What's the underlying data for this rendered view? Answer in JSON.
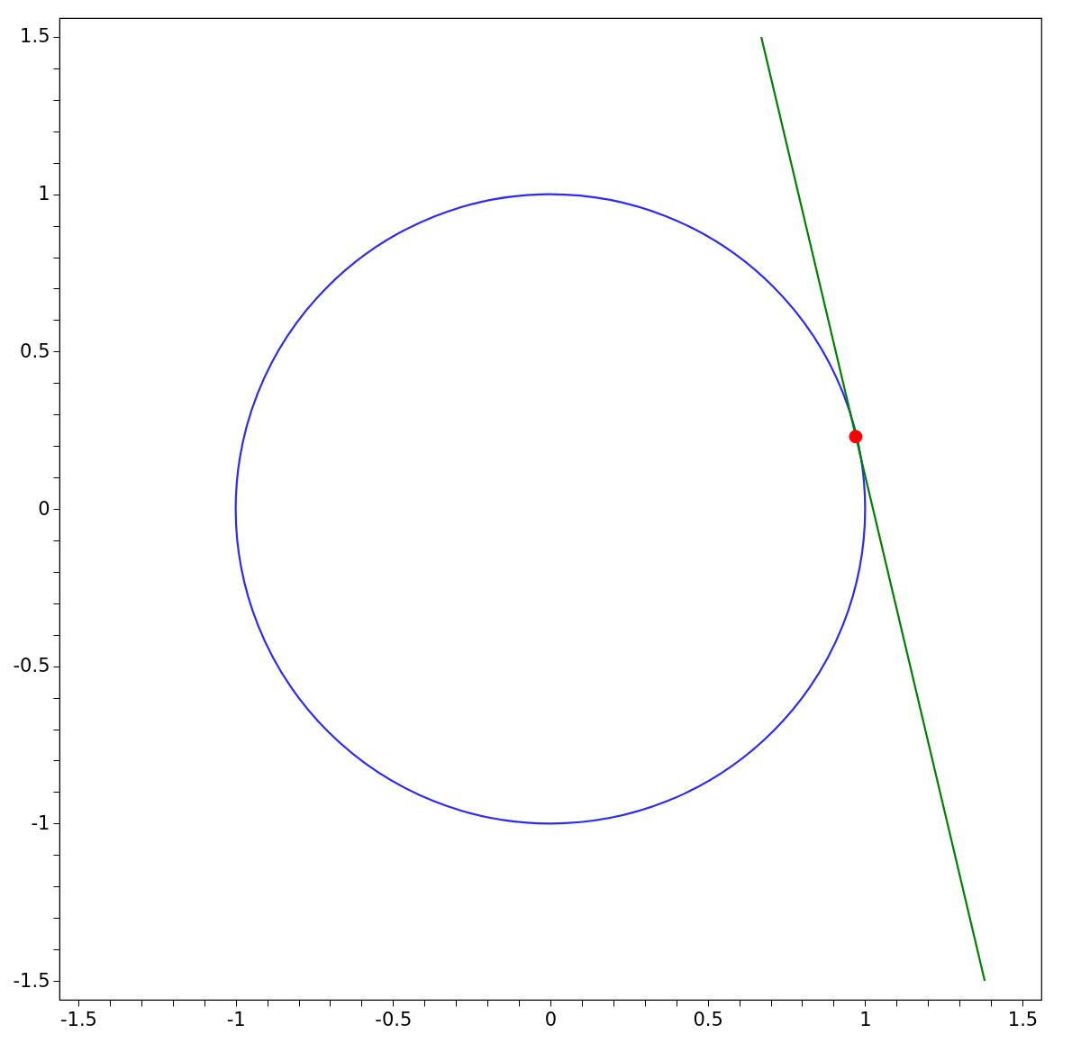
{
  "chart_data": {
    "type": "line",
    "xlim": [
      -1.56,
      1.56
    ],
    "ylim": [
      -1.56,
      1.56
    ],
    "grid": false,
    "xticks": [
      -1.5,
      {
        "value": -1.4,
        "label": null
      },
      {
        "value": -1.3,
        "label": null
      },
      {
        "value": -1.2,
        "label": null
      },
      {
        "value": -1.1,
        "label": null
      },
      -1,
      {
        "value": -0.9,
        "label": null
      },
      {
        "value": -0.8,
        "label": null
      },
      {
        "value": -0.7,
        "label": null
      },
      {
        "value": -0.6,
        "label": null
      },
      -0.5,
      {
        "value": -0.4,
        "label": null
      },
      {
        "value": -0.3,
        "label": null
      },
      {
        "value": -0.2,
        "label": null
      },
      {
        "value": -0.1,
        "label": null
      },
      0,
      {
        "value": 0.1,
        "label": null
      },
      {
        "value": 0.2,
        "label": null
      },
      {
        "value": 0.3,
        "label": null
      },
      {
        "value": 0.4,
        "label": null
      },
      0.5,
      {
        "value": 0.6,
        "label": null
      },
      {
        "value": 0.7,
        "label": null
      },
      {
        "value": 0.8,
        "label": null
      },
      {
        "value": 0.9,
        "label": null
      },
      1,
      {
        "value": 1.1,
        "label": null
      },
      {
        "value": 1.2,
        "label": null
      },
      {
        "value": 1.3,
        "label": null
      },
      {
        "value": 1.4,
        "label": null
      },
      1.5
    ],
    "yticks": [
      -1.5,
      {
        "value": -1.4,
        "label": null
      },
      {
        "value": -1.3,
        "label": null
      },
      {
        "value": -1.2,
        "label": null
      },
      {
        "value": -1.1,
        "label": null
      },
      -1,
      {
        "value": -0.9,
        "label": null
      },
      {
        "value": -0.8,
        "label": null
      },
      {
        "value": -0.7,
        "label": null
      },
      {
        "value": -0.6,
        "label": null
      },
      -0.5,
      {
        "value": -0.4,
        "label": null
      },
      {
        "value": -0.3,
        "label": null
      },
      {
        "value": -0.2,
        "label": null
      },
      {
        "value": -0.1,
        "label": null
      },
      0,
      {
        "value": 0.1,
        "label": null
      },
      {
        "value": 0.2,
        "label": null
      },
      {
        "value": 0.3,
        "label": null
      },
      {
        "value": 0.4,
        "label": null
      },
      0.5,
      {
        "value": 0.6,
        "label": null
      },
      {
        "value": 0.7,
        "label": null
      },
      {
        "value": 0.8,
        "label": null
      },
      {
        "value": 0.9,
        "label": null
      },
      1,
      {
        "value": 1.1,
        "label": null
      },
      {
        "value": 1.2,
        "label": null
      },
      {
        "value": 1.3,
        "label": null
      },
      {
        "value": 1.4,
        "label": null
      },
      1.5
    ],
    "series": [
      {
        "type": "line",
        "color": "#008000",
        "marker": "none",
        "x": [
          0.67,
          1.38
        ],
        "values": [
          1.5,
          -1.5
        ]
      },
      {
        "type": "scatter",
        "color": "#ff0000",
        "marker": "circle",
        "x": [
          0.97
        ],
        "values": [
          0.23
        ]
      }
    ]
  }
}
